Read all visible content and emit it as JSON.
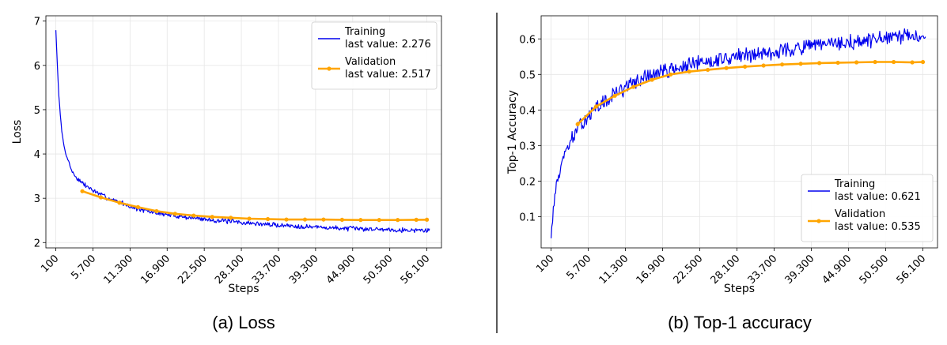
{
  "colors": {
    "training": "#0000ee",
    "validation": "#ffa500",
    "grid": "#e6e6e6",
    "divider": "#000000"
  },
  "divider": true,
  "chart_data": [
    {
      "id": "loss",
      "type": "line",
      "caption": "(a) Loss",
      "xlabel": "Steps",
      "ylabel": "Loss",
      "xlim": [
        -1400,
        58300
      ],
      "ylim": [
        1.88,
        7.12
      ],
      "xticks": [
        100,
        5700,
        11300,
        16900,
        22500,
        28100,
        33700,
        39300,
        44900,
        50500,
        56100
      ],
      "xtick_labels": [
        "100",
        "5.700",
        "11.300",
        "16.900",
        "22.500",
        "28.100",
        "33.700",
        "39.300",
        "44.900",
        "50.500",
        "56.100"
      ],
      "yticks": [
        2,
        3,
        4,
        5,
        6,
        7
      ],
      "ytick_labels": [
        "2",
        "3",
        "4",
        "5",
        "6",
        "7"
      ],
      "grid": true,
      "legend_position": "top-right",
      "series": [
        {
          "name": "Training",
          "legend_text": "last value: 2.276",
          "kind": "noisy",
          "x_range": [
            100,
            56500
          ],
          "points": 500,
          "seed": 7,
          "anchors": [
            [
              100,
              6.8
            ],
            [
              300,
              6.1
            ],
            [
              600,
              5.2
            ],
            [
              1000,
              4.5
            ],
            [
              1500,
              4.05
            ],
            [
              2000,
              3.85
            ],
            [
              2500,
              3.62
            ],
            [
              3000,
              3.5
            ],
            [
              4000,
              3.35
            ],
            [
              5000,
              3.25
            ],
            [
              6000,
              3.15
            ],
            [
              8000,
              3.0
            ],
            [
              10000,
              2.9
            ],
            [
              12000,
              2.78
            ],
            [
              14000,
              2.7
            ],
            [
              17000,
              2.63
            ],
            [
              20000,
              2.57
            ],
            [
              23000,
              2.52
            ],
            [
              26000,
              2.48
            ],
            [
              30000,
              2.43
            ],
            [
              34000,
              2.39
            ],
            [
              38000,
              2.36
            ],
            [
              42000,
              2.33
            ],
            [
              46000,
              2.31
            ],
            [
              50000,
              2.3
            ],
            [
              53000,
              2.28
            ],
            [
              56500,
              2.276
            ]
          ],
          "noise": 0.045
        },
        {
          "name": "Validation",
          "legend_text": "last value: 2.517",
          "kind": "markers",
          "x": [
            4100,
            6900,
            9700,
            12500,
            15300,
            18100,
            20900,
            23700,
            26500,
            29300,
            32100,
            34900,
            37700,
            40500,
            43300,
            46100,
            48900,
            51700,
            54500,
            56100
          ],
          "y": [
            3.16,
            3.02,
            2.9,
            2.8,
            2.71,
            2.65,
            2.61,
            2.58,
            2.56,
            2.54,
            2.53,
            2.52,
            2.52,
            2.52,
            2.515,
            2.51,
            2.51,
            2.51,
            2.515,
            2.517
          ]
        }
      ]
    },
    {
      "id": "acc",
      "type": "line",
      "caption": "(b) Top-1 accuracy",
      "xlabel": "Steps",
      "ylabel": "Top-1 Accuracy",
      "xlim": [
        -1400,
        58300
      ],
      "ylim": [
        0.012,
        0.665
      ],
      "xticks": [
        100,
        5700,
        11300,
        16900,
        22500,
        28100,
        33700,
        39300,
        44900,
        50500,
        56100
      ],
      "xtick_labels": [
        "100",
        "5.700",
        "11.300",
        "16.900",
        "22.500",
        "28.100",
        "33.700",
        "39.300",
        "44.900",
        "50.500",
        "56.100"
      ],
      "yticks": [
        0.1,
        0.2,
        0.3,
        0.4,
        0.5,
        0.6
      ],
      "ytick_labels": [
        "0.1",
        "0.2",
        "0.3",
        "0.4",
        "0.5",
        "0.6"
      ],
      "grid": true,
      "legend_position": "lower-right",
      "series": [
        {
          "name": "Training",
          "legend_text": "last value: 0.621",
          "kind": "noisy",
          "x_range": [
            100,
            56500
          ],
          "points": 500,
          "seed": 13,
          "anchors": [
            [
              100,
              0.045
            ],
            [
              300,
              0.09
            ],
            [
              600,
              0.15
            ],
            [
              1000,
              0.2
            ],
            [
              1500,
              0.23
            ],
            [
              2000,
              0.27
            ],
            [
              3000,
              0.31
            ],
            [
              4000,
              0.34
            ],
            [
              5000,
              0.37
            ],
            [
              6000,
              0.39
            ],
            [
              8000,
              0.42
            ],
            [
              10000,
              0.45
            ],
            [
              12000,
              0.47
            ],
            [
              14000,
              0.49
            ],
            [
              17000,
              0.51
            ],
            [
              20000,
              0.52
            ],
            [
              23000,
              0.535
            ],
            [
              26000,
              0.545
            ],
            [
              30000,
              0.555
            ],
            [
              34000,
              0.565
            ],
            [
              38000,
              0.575
            ],
            [
              42000,
              0.585
            ],
            [
              46000,
              0.59
            ],
            [
              50000,
              0.6
            ],
            [
              53000,
              0.605
            ],
            [
              56500,
              0.61
            ]
          ],
          "noise": 0.018
        },
        {
          "name": "Validation",
          "legend_text": "last value: 0.535",
          "kind": "markers",
          "x": [
            4100,
            6900,
            9700,
            12500,
            15300,
            18100,
            20900,
            23700,
            26500,
            29300,
            32100,
            34900,
            37700,
            40500,
            43300,
            46100,
            48900,
            51700,
            54500,
            56100
          ],
          "y": [
            0.36,
            0.41,
            0.44,
            0.465,
            0.485,
            0.5,
            0.508,
            0.513,
            0.518,
            0.522,
            0.525,
            0.528,
            0.53,
            0.532,
            0.533,
            0.534,
            0.535,
            0.535,
            0.534,
            0.535
          ]
        }
      ]
    }
  ]
}
